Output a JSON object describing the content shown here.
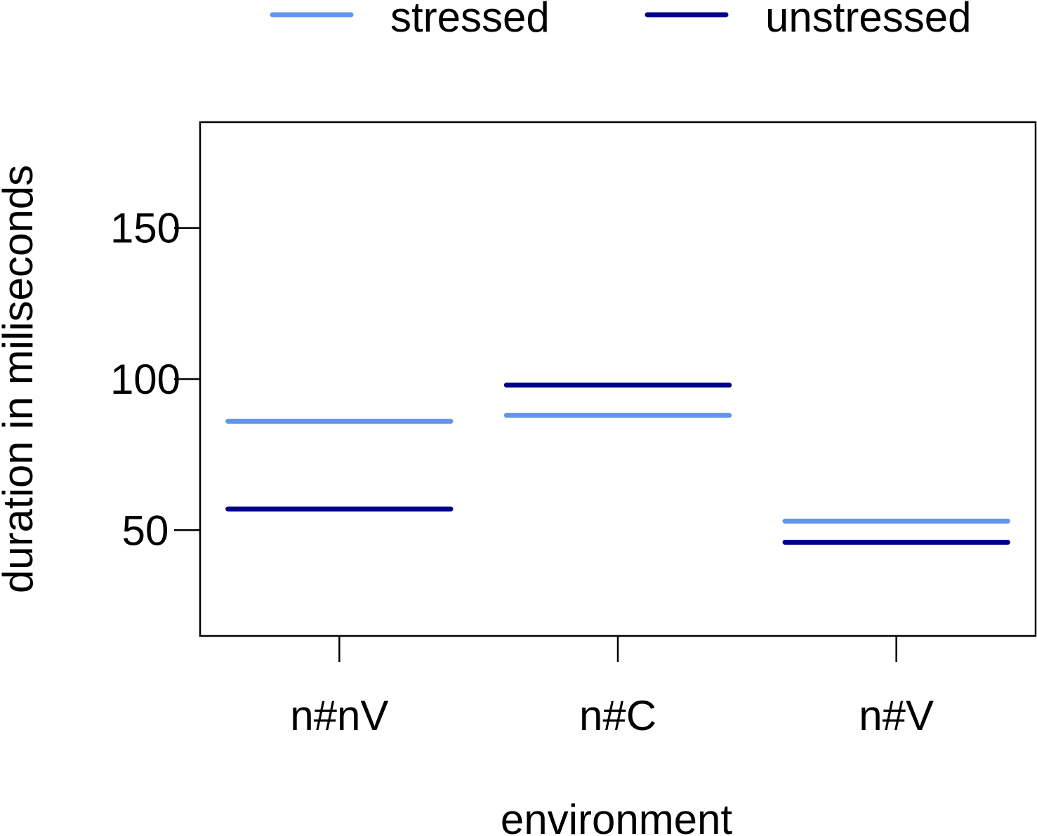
{
  "chart_data": {
    "type": "line",
    "title": "",
    "xlabel": "environment",
    "ylabel": "duration in miliseconds",
    "categories": [
      "n#nV",
      "n#C",
      "n#V"
    ],
    "ylim": [
      15,
      185
    ],
    "yticks": [
      50,
      100,
      150
    ],
    "grid": false,
    "legend_position": "top",
    "series": [
      {
        "name": "stressed",
        "color": "#6495ED",
        "values": [
          86,
          88,
          53
        ]
      },
      {
        "name": "unstressed",
        "color": "#00008B",
        "values": [
          57,
          98,
          46
        ]
      }
    ]
  }
}
